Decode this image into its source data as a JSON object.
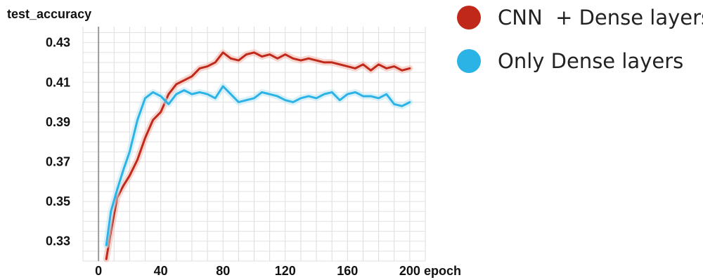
{
  "chart_data": {
    "type": "line",
    "ylabel": "test_accuracy",
    "xlabel": "epoch",
    "xlim": [
      -10,
      210
    ],
    "ylim": [
      0.32,
      0.438
    ],
    "x_ticks": [
      0,
      40,
      80,
      120,
      160,
      200
    ],
    "y_ticks": [
      0.33,
      0.35,
      0.37,
      0.39,
      0.41,
      0.43
    ],
    "y_tick_labels": [
      "0.33",
      "0.35",
      "0.37",
      "0.39",
      "0.41",
      "0.43"
    ],
    "grid": true,
    "legend_position": "top-right",
    "series": [
      {
        "name": "CNN  + Dense layers",
        "color": "#c0281a",
        "raw_color": "#f2b3a8",
        "x": [
          5,
          8,
          12,
          16,
          20,
          25,
          30,
          35,
          40,
          45,
          50,
          55,
          60,
          65,
          70,
          75,
          80,
          85,
          90,
          95,
          100,
          105,
          110,
          115,
          120,
          125,
          130,
          135,
          140,
          145,
          150,
          155,
          160,
          165,
          170,
          175,
          180,
          185,
          190,
          195,
          200
        ],
        "y": [
          0.321,
          0.335,
          0.352,
          0.358,
          0.363,
          0.371,
          0.382,
          0.391,
          0.395,
          0.404,
          0.409,
          0.411,
          0.413,
          0.417,
          0.418,
          0.42,
          0.425,
          0.422,
          0.421,
          0.424,
          0.425,
          0.423,
          0.424,
          0.422,
          0.424,
          0.422,
          0.421,
          0.422,
          0.421,
          0.42,
          0.42,
          0.419,
          0.418,
          0.417,
          0.419,
          0.416,
          0.419,
          0.417,
          0.418,
          0.416,
          0.417
        ]
      },
      {
        "name": "Only Dense layers",
        "color": "#2bb3e6",
        "raw_color": "#bde6f6",
        "x": [
          5,
          8,
          12,
          16,
          20,
          25,
          30,
          35,
          40,
          45,
          50,
          55,
          60,
          65,
          70,
          75,
          80,
          85,
          90,
          95,
          100,
          105,
          110,
          115,
          120,
          125,
          130,
          135,
          140,
          145,
          150,
          155,
          160,
          165,
          170,
          175,
          180,
          185,
          190,
          195,
          200
        ],
        "y": [
          0.328,
          0.345,
          0.356,
          0.366,
          0.375,
          0.391,
          0.402,
          0.405,
          0.403,
          0.399,
          0.404,
          0.406,
          0.404,
          0.405,
          0.404,
          0.402,
          0.408,
          0.404,
          0.4,
          0.401,
          0.402,
          0.405,
          0.404,
          0.403,
          0.401,
          0.4,
          0.402,
          0.403,
          0.402,
          0.404,
          0.405,
          0.401,
          0.404,
          0.405,
          0.403,
          0.403,
          0.402,
          0.404,
          0.399,
          0.398,
          0.4
        ]
      }
    ]
  }
}
